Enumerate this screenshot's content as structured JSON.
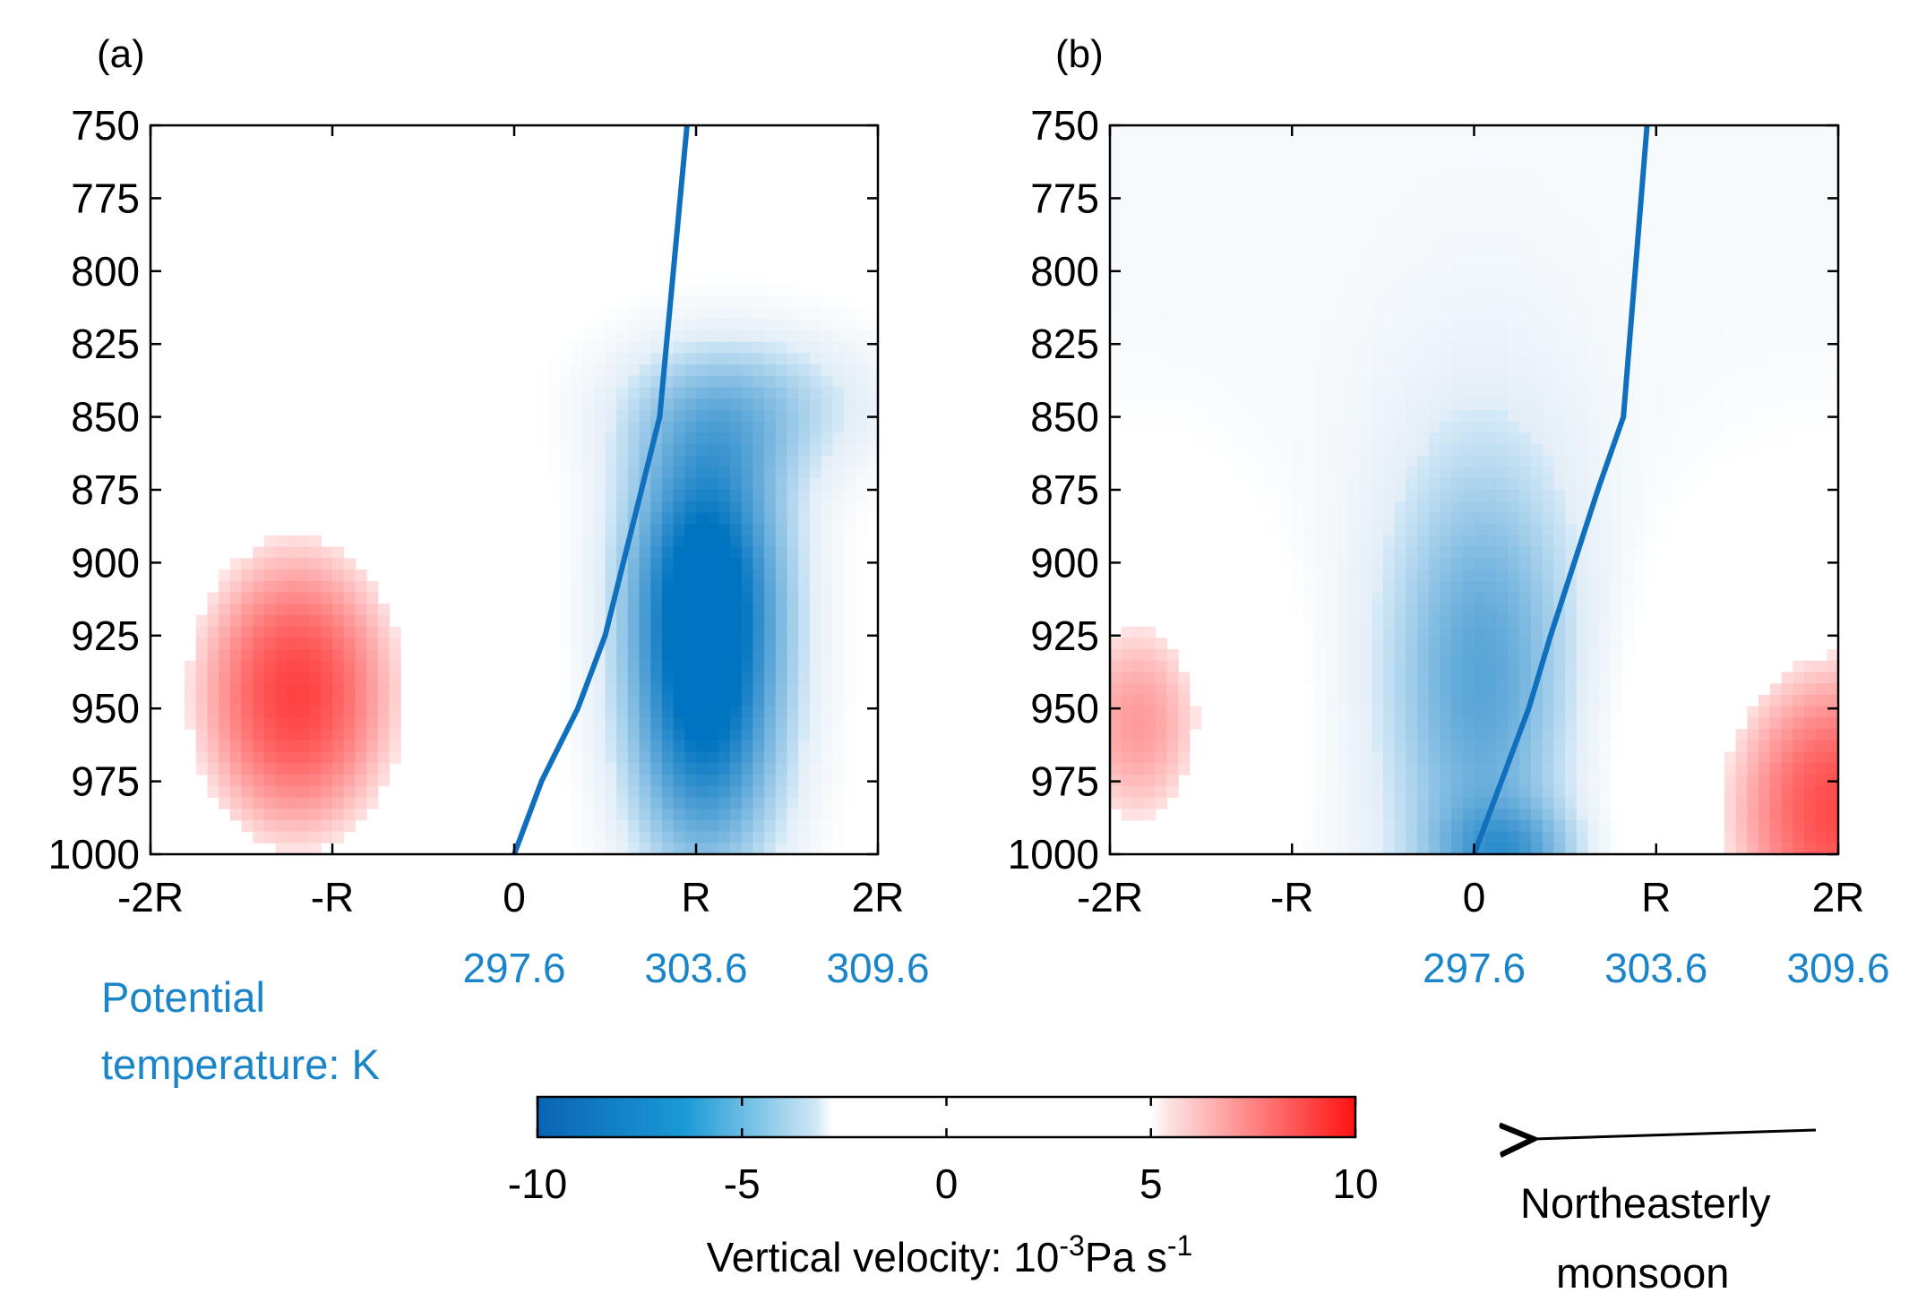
{
  "colors": {
    "negative": "#0074c0",
    "positive": "#ff1a1a",
    "theta_line": "#1170bd",
    "theta_text": "#1a85c8",
    "axis": "#000000"
  },
  "chart_data": [
    {
      "type": "contour",
      "panel_label": "(a)",
      "ylabel_ticks": [
        "750",
        "775",
        "800",
        "825",
        "850",
        "875",
        "900",
        "925",
        "950",
        "975",
        "1000"
      ],
      "y_values": [
        750,
        775,
        800,
        825,
        850,
        875,
        900,
        925,
        950,
        975,
        1000
      ],
      "ylim": [
        1000,
        750
      ],
      "x_ticks": [
        "-2R",
        "-R",
        "0",
        "R",
        "2R"
      ],
      "x_values": [
        -2,
        -1,
        0,
        1,
        2
      ],
      "xlim": [
        -2,
        2
      ],
      "theta_ticks": [
        "297.6",
        "303.6",
        "309.6"
      ],
      "theta_values": [
        297.6,
        303.6,
        309.6
      ],
      "theta_line": {
        "name": "Potential temperature",
        "x": [
          0.0,
          0.15,
          0.35,
          0.5,
          0.6,
          0.7,
          0.8,
          0.95
        ],
        "y": [
          1000,
          975,
          950,
          925,
          900,
          875,
          850,
          750
        ]
      },
      "blobs": [
        {
          "name": "descent",
          "value": 9,
          "cx": -1.2,
          "cy": 945,
          "sx": 0.55,
          "sy": 50
        },
        {
          "name": "ascent-low",
          "value": -9,
          "cx": 1.05,
          "cy": 955,
          "sx": 0.35,
          "sy": 45
        },
        {
          "name": "ascent-mid",
          "value": -7,
          "cx": 1.05,
          "cy": 895,
          "sx": 0.35,
          "sy": 35
        },
        {
          "name": "ascent-upper",
          "value": -4,
          "cx": 1.3,
          "cy": 845,
          "sx": 0.6,
          "sy": 20
        }
      ]
    },
    {
      "type": "contour",
      "panel_label": "(b)",
      "ylabel_ticks": [
        "750",
        "775",
        "800",
        "825",
        "850",
        "875",
        "900",
        "925",
        "950",
        "975",
        "1000"
      ],
      "y_values": [
        750,
        775,
        800,
        825,
        850,
        875,
        900,
        925,
        950,
        975,
        1000
      ],
      "ylim": [
        1000,
        750
      ],
      "x_ticks": [
        "-2R",
        "-R",
        "0",
        "R",
        "2R"
      ],
      "x_values": [
        -2,
        -1,
        0,
        1,
        2
      ],
      "xlim": [
        -2,
        2
      ],
      "theta_ticks": [
        "297.6",
        "303.6",
        "309.6"
      ],
      "theta_values": [
        297.6,
        303.6,
        309.6
      ],
      "theta_line": {
        "name": "Potential temperature",
        "x": [
          0.0,
          0.15,
          0.3,
          0.42,
          0.55,
          0.68,
          0.82,
          0.95
        ],
        "y": [
          1000,
          975,
          950,
          925,
          900,
          875,
          850,
          750
        ]
      },
      "background_value": -1.2,
      "blobs": [
        {
          "name": "descent-left",
          "value": 8,
          "cx": -1.85,
          "cy": 955,
          "sx": 0.45,
          "sy": 45
        },
        {
          "name": "descent-right",
          "value": 10,
          "cx": 2.0,
          "cy": 985,
          "sx": 0.65,
          "sy": 55
        },
        {
          "name": "ascent-center",
          "value": -6,
          "cx": 0.05,
          "cy": 940,
          "sx": 0.4,
          "sy": 60
        },
        {
          "name": "ascent-surface",
          "value": -4,
          "cx": 0.2,
          "cy": 1000,
          "sx": 0.3,
          "sy": 12
        }
      ]
    }
  ],
  "theta_axis_title_line1": "Potential",
  "theta_axis_title_line2": "temperature: K",
  "colorbar": {
    "ticks": [
      "-10",
      "-5",
      "0",
      "5",
      "10"
    ],
    "values": [
      -10,
      -5,
      0,
      5,
      10
    ],
    "range": [
      -10,
      10
    ],
    "white_band": [
      -3,
      5
    ],
    "label_prefix": "Vertical velocity: 10",
    "label_exp1": "-3",
    "label_mid": "Pa s",
    "label_exp2": "-1"
  },
  "wind": {
    "label_line1": "Northeasterly",
    "label_line2": "monsoon",
    "direction": "westward"
  }
}
